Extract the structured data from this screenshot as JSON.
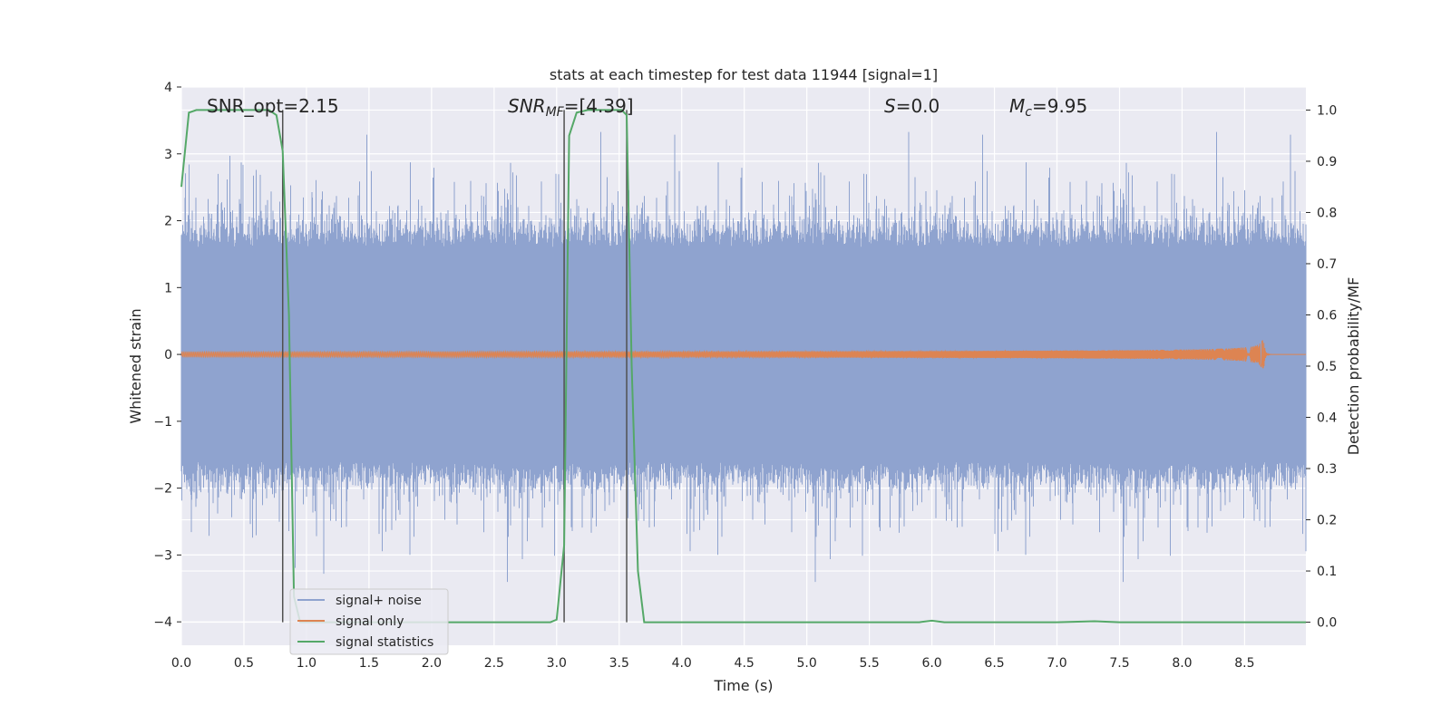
{
  "chart_data": {
    "type": "line",
    "title": "stats at each timestep for test data 11944 [signal=1]",
    "xlabel": "Time (s)",
    "ylabel": "Whitened strain",
    "y2label": "Detection probability/MF",
    "xlim": [
      0.0,
      8.99
    ],
    "ylim": [
      -4.35,
      4.0
    ],
    "y2lim": [
      -0.045,
      1.045
    ],
    "x_ticks": [
      "0.0",
      "0.5",
      "1.0",
      "1.5",
      "2.0",
      "2.5",
      "3.0",
      "3.5",
      "4.0",
      "4.5",
      "5.0",
      "5.5",
      "6.0",
      "6.5",
      "7.0",
      "7.5",
      "8.0",
      "8.5"
    ],
    "y_ticks": [
      "4",
      "3",
      "2",
      "1",
      "0",
      "−1",
      "−2",
      "−3",
      "−4"
    ],
    "y2_ticks": [
      "1.0",
      "0.9",
      "0.8",
      "0.7",
      "0.6",
      "0.5",
      "0.4",
      "0.3",
      "0.2",
      "0.1",
      "0.0"
    ],
    "grid": true,
    "legend_placement": "lower-left",
    "annotations": {
      "snr_opt": "SNR_opt=2.15",
      "snr_mf_base": "SNR",
      "snr_mf_sub": "MF",
      "snr_mf_value": "=[4.39]",
      "s_label": "S",
      "s_value": "=0.0",
      "mc_base": "M",
      "mc_sub": "c",
      "mc_value": "=9.95"
    },
    "vertical_lines_x": [
      0.81,
      3.06,
      3.56
    ],
    "series": [
      {
        "name": "signal+ noise",
        "color": "#8fa3cf",
        "noise_envelope": {
          "typical_max": 1.6,
          "peak_max": 3.6,
          "peak_min": -3.8
        }
      },
      {
        "name": "signal only",
        "color": "#dd8452",
        "chirp": {
          "start": 0.0,
          "peak_time": 8.65,
          "peak_amplitude": 0.32
        }
      },
      {
        "name": "signal statistics",
        "color": "#55a868",
        "axis": "right",
        "x": [
          0.0,
          0.06,
          0.12,
          0.3,
          0.5,
          0.7,
          0.76,
          0.81,
          0.86,
          0.9,
          0.95,
          1.5,
          2.0,
          2.5,
          2.95,
          3.0,
          3.06,
          3.1,
          3.16,
          3.25,
          3.4,
          3.52,
          3.56,
          3.6,
          3.65,
          3.7,
          4.0,
          5.0,
          5.9,
          6.0,
          6.1,
          7.0,
          7.3,
          7.5,
          8.0,
          8.99
        ],
        "y": [
          0.85,
          0.995,
          1.0,
          1.0,
          1.0,
          1.0,
          0.99,
          0.92,
          0.6,
          0.05,
          0.0,
          0.0,
          0.0,
          0.0,
          0.0,
          0.005,
          0.15,
          0.95,
          0.995,
          1.0,
          1.0,
          1.0,
          0.99,
          0.5,
          0.1,
          0.0,
          0.0,
          0.0,
          0.0,
          0.003,
          0.0,
          0.0,
          0.002,
          0.0,
          0.0,
          0.0
        ]
      }
    ]
  }
}
